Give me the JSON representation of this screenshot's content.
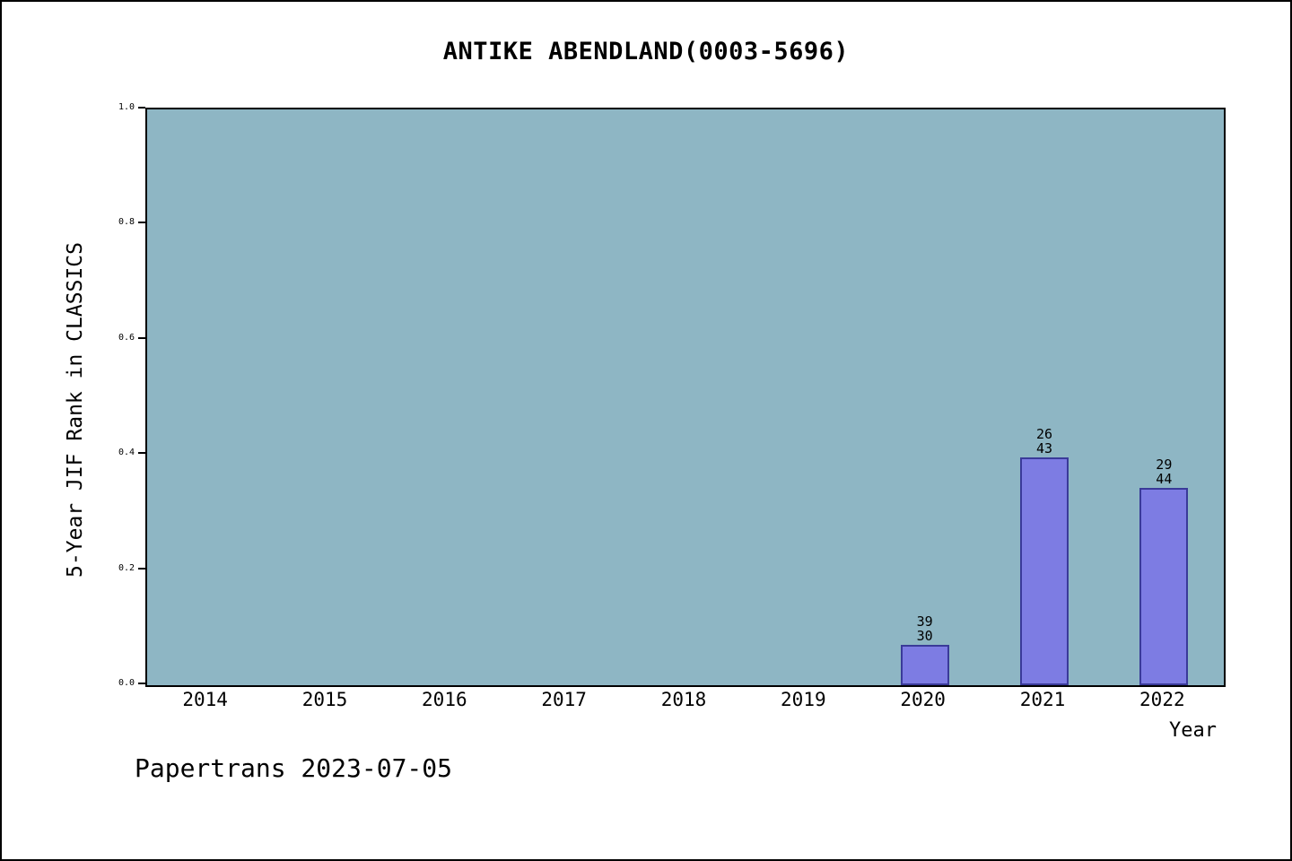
{
  "chart_data": {
    "type": "bar",
    "title": "ANTIKE ABENDLAND(0003-5696)",
    "xlabel": "Year",
    "ylabel": "5-Year JIF Rank in CLASSICS",
    "footer": "Papertrans 2023-07-05",
    "categories": [
      "2014",
      "2015",
      "2016",
      "2017",
      "2018",
      "2019",
      "2020",
      "2021",
      "2022"
    ],
    "values": [
      null,
      null,
      null,
      null,
      null,
      null,
      0.07,
      0.395,
      0.342
    ],
    "bar_labels": [
      null,
      null,
      null,
      null,
      null,
      null,
      [
        "39",
        "30"
      ],
      [
        "26",
        "43"
      ],
      [
        "29",
        "44"
      ]
    ],
    "ylim": [
      0,
      1
    ],
    "yticks": [
      0.0,
      0.2,
      0.4,
      0.6,
      0.8,
      1.0
    ],
    "grid": false,
    "legend": "none",
    "colors": {
      "plot_bg": "#8EB6C4",
      "bar_fill": "#7D7CE3",
      "bar_border": "#3A3A99",
      "text": "#000000",
      "page_bg": "#FFFFFF",
      "frame": "#000000"
    }
  }
}
